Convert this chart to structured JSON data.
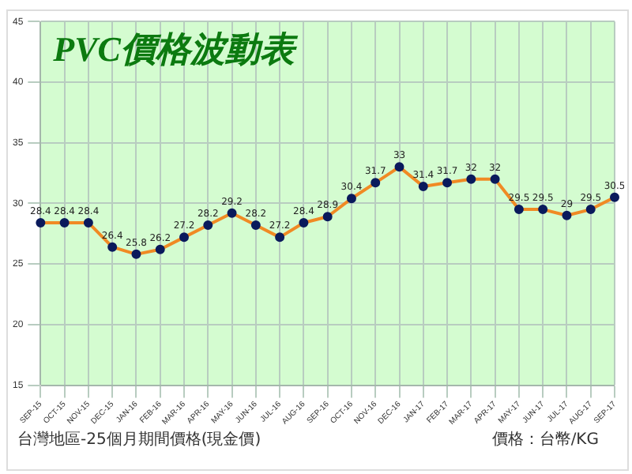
{
  "chart_data": {
    "type": "line",
    "title": "PVC價格波動表",
    "categories": [
      "SEP-15",
      "OCT-15",
      "NOV-15",
      "DEC-15",
      "JAN-16",
      "FEB-16",
      "MAR-16",
      "APR-16",
      "MAY-16",
      "JUN-16",
      "JUL-16",
      "AUG-16",
      "SEP-16",
      "OCT-16",
      "NOV-16",
      "DEC-16",
      "JAN-17",
      "FEB-17",
      "MAR-17",
      "APR-17",
      "MAY-17",
      "JUN-17",
      "JUL-17",
      "AUG-17",
      "SEP-17"
    ],
    "series": [
      {
        "color": "#f08a24",
        "values": [
          28.4,
          28.4,
          28.4,
          26.4,
          25.8,
          26.2,
          27.2,
          28.2,
          29.2,
          28.2,
          27.2,
          28.4,
          28.9,
          30.4,
          31.7,
          33,
          31.4,
          31.7,
          32,
          32,
          29.5,
          29.5,
          29,
          29.5,
          30.5
        ]
      }
    ],
    "ylim": [
      15,
      45
    ],
    "yticks": [
      15,
      20,
      25,
      30,
      35,
      40,
      45
    ],
    "grid": true,
    "marker": "circle",
    "line_style": "solid",
    "data_labels": true,
    "legend": false,
    "annotations": [
      "台灣地區-25個月期間價格(現金價)",
      "價格：台幣/KG"
    ]
  }
}
